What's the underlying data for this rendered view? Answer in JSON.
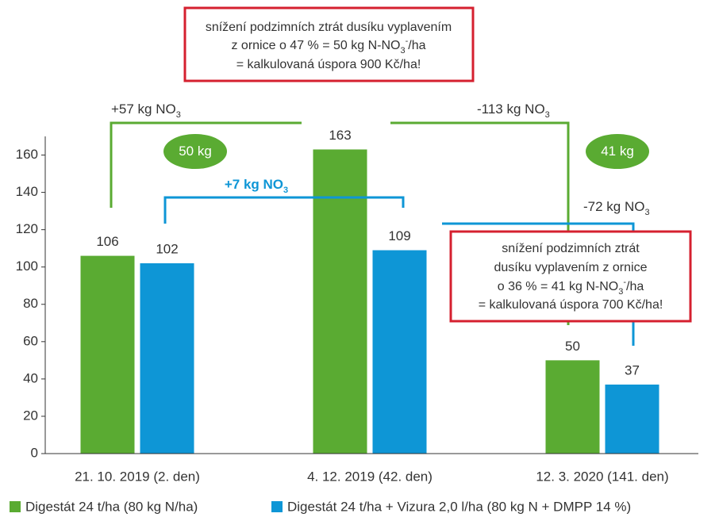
{
  "chart_data": {
    "type": "bar",
    "categories": [
      "21. 10. 2019 (2. den)",
      "4. 12. 2019 (42. den)",
      "12. 3. 2020 (141. den)"
    ],
    "series": [
      {
        "name": "Digestát 24 t/ha (80 kg N/ha)",
        "color": "#5aab32",
        "values": [
          106,
          163,
          50
        ]
      },
      {
        "name": "Digestát 24 t/ha + Vizura 2,0 l/ha (80 kg N + DMPP 14 %)",
        "color": "#0e96d6",
        "values": [
          102,
          109,
          37
        ]
      }
    ],
    "ylim": [
      0,
      170
    ],
    "yticks": [
      0,
      20,
      40,
      60,
      80,
      100,
      120,
      140,
      160
    ],
    "annotations": [
      {
        "parts": [
          {
            "text": "+57 kg NO"
          },
          {
            "text": "3",
            "shift": "sub"
          }
        ]
      },
      {
        "parts": [
          {
            "text": "-113 kg NO"
          },
          {
            "text": "3",
            "shift": "sub"
          }
        ]
      },
      {
        "parts": [
          {
            "text": "+7 kg NO"
          },
          {
            "text": "3",
            "shift": "sub"
          }
        ]
      },
      {
        "parts": [
          {
            "text": "-72 kg NO"
          },
          {
            "text": "3",
            "shift": "sub"
          }
        ]
      },
      {
        "parts": [
          {
            "text": "50 kg"
          }
        ]
      },
      {
        "parts": [
          {
            "text": "41 kg"
          }
        ]
      }
    ],
    "callouts": [
      {
        "lines": [
          [
            {
              "text": "snížení podzimních ztrát dusíku vyplavením"
            }
          ],
          [
            {
              "text": "z ornice o 47 % = 50 kg N-NO"
            },
            {
              "text": "3",
              "shift": "sub"
            },
            {
              "text": "-",
              "shift": "super"
            },
            {
              "text": "/ha"
            }
          ],
          [
            {
              "text": "= kalkulovaná úspora 900 Kč/ha!"
            }
          ]
        ]
      },
      {
        "lines": [
          [
            {
              "text": "snížení podzimních ztrát"
            }
          ],
          [
            {
              "text": "dusíku vyplavením z ornice"
            }
          ],
          [
            {
              "text": "o 36 % = 41 kg N-NO"
            },
            {
              "text": "3",
              "shift": "sub"
            },
            {
              "text": "-",
              "shift": "super"
            },
            {
              "text": "/ha"
            }
          ],
          [
            {
              "text": "= kalkulovaná úspora 700 Kč/ha!"
            }
          ]
        ]
      }
    ]
  }
}
